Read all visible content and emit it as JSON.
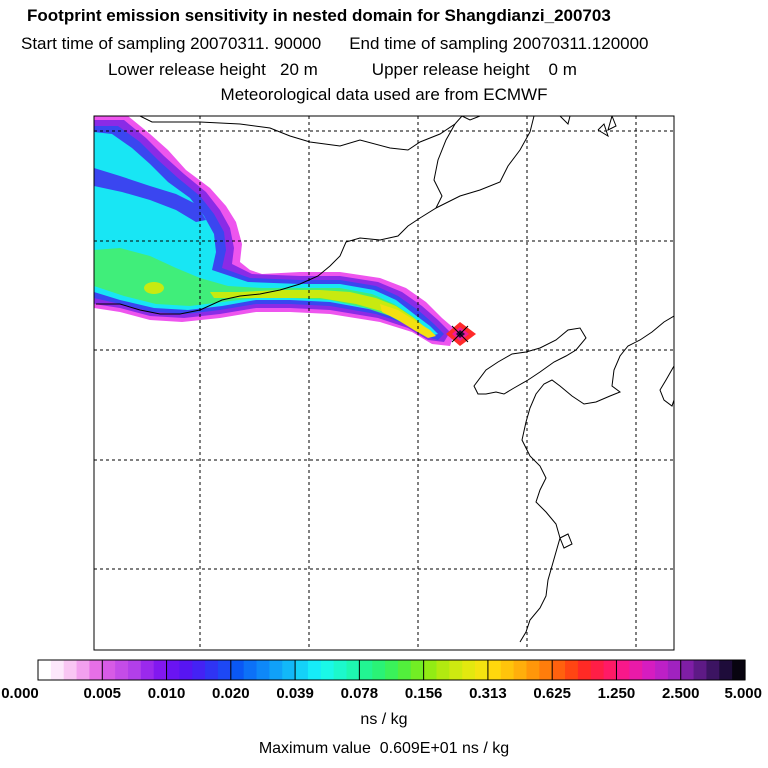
{
  "title": {
    "line1": "Footprint emission sensitivity in nested domain for Shangdianzi_200703",
    "start_label": "Start time of sampling 20070311. 90000",
    "end_label": "End time of sampling 20070311.120000",
    "lower_label": "Lower release height   20 m",
    "upper_label": "Upper release height    0 m",
    "met_label": "Meteorological data used are from ECMWF"
  },
  "colorbar": {
    "ticks": [
      "0.000",
      "0.005",
      "0.010",
      "0.020",
      "0.039",
      "0.078",
      "0.156",
      "0.313",
      "0.625",
      "1.250",
      "2.500",
      "5.000"
    ],
    "colors": [
      "#ffffff",
      "#fde8fb",
      "#f9c6f3",
      "#f2a0ee",
      "#e66fe6",
      "#d75be6",
      "#c44ce8",
      "#b23fe9",
      "#9b29ec",
      "#8218ef",
      "#6a14f2",
      "#5715f2",
      "#4422f4",
      "#2f34f4",
      "#1d48f5",
      "#0a58f5",
      "#0c71f7",
      "#0e88f8",
      "#10a1f8",
      "#12b8f8",
      "#14d2f8",
      "#16ecf8",
      "#1af8e8",
      "#1cf8cc",
      "#1ef7b0",
      "#22f592",
      "#2af376",
      "#3af25a",
      "#52ef3c",
      "#72ee24",
      "#92ec14",
      "#b2ea10",
      "#cdea10",
      "#e3e80f",
      "#f4e310",
      "#ffd80d",
      "#ffc40b",
      "#ffaf0b",
      "#ff970a",
      "#ff7d0b",
      "#ff610e",
      "#ff4513",
      "#ff2a25",
      "#ff1e46",
      "#ff1a66",
      "#f8188a",
      "#ea1aa8",
      "#d61cc0",
      "#bd20c6",
      "#a022c0",
      "#7f1ea6",
      "#5e1a86",
      "#3c1462",
      "#1e0c3a",
      "#080410"
    ],
    "units": "ns / kg"
  },
  "max_value_label": "Maximum value  0.609E+01 ns / kg",
  "map": {
    "footprint_colors": {
      "edge": "#ee55ee",
      "purple": "#8a2be6",
      "blue": "#3a46f0",
      "cyan": "#18e6f4",
      "lightcyan": "#20f0d8",
      "green": "#40ee7a",
      "yellowgreen": "#c8ea10",
      "yellow": "#f4e010",
      "orange": "#ffa60c",
      "red": "#ff2a2a",
      "magenta": "#ee1a9a",
      "dark": "#2a0e3c"
    },
    "grid_color": "#000000",
    "coast_color": "#000000"
  }
}
